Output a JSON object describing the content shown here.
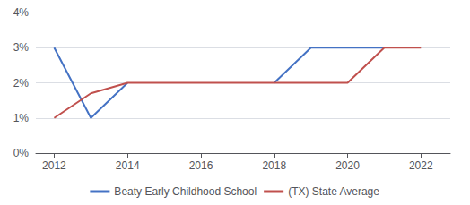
{
  "chart_data": {
    "type": "line",
    "series": [
      {
        "name": "Beaty Early Childhood School",
        "color": "#4472c4",
        "x": [
          2012,
          2013,
          2014,
          null,
          2018,
          2019,
          2020,
          2021
        ],
        "values": [
          3.0,
          1.0,
          2.0,
          null,
          2.0,
          3.0,
          3.0,
          3.0
        ]
      },
      {
        "name": "(TX) State Average",
        "color": "#c0504d",
        "x": [
          2012,
          2013,
          2014,
          2018,
          2020,
          2021,
          2022
        ],
        "values": [
          1.0,
          1.7,
          2.0,
          2.0,
          2.0,
          3.0,
          3.0
        ]
      }
    ],
    "xlim": [
      2011.5,
      2022.8
    ],
    "xticks": [
      2012,
      2014,
      2016,
      2018,
      2020,
      2022
    ],
    "ylim": [
      0,
      4.0
    ],
    "yticks": [
      {
        "value": 0,
        "label": "0%"
      },
      {
        "value": 1,
        "label": "1%"
      },
      {
        "value": 2,
        "label": "2%"
      },
      {
        "value": 3,
        "label": "3%"
      },
      {
        "value": 4,
        "label": "4%"
      }
    ],
    "grid": true,
    "legend": "bottom"
  }
}
